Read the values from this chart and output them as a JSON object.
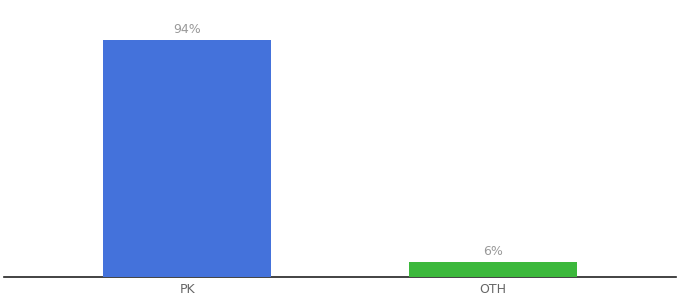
{
  "categories": [
    "PK",
    "OTH"
  ],
  "values": [
    94,
    6
  ],
  "bar_colors": [
    "#4472DB",
    "#3CB83C"
  ],
  "labels": [
    "94%",
    "6%"
  ],
  "background_color": "#ffffff",
  "text_color": "#999999",
  "label_fontsize": 9,
  "tick_fontsize": 9,
  "ylim": [
    0,
    108
  ],
  "bar_width": 0.55,
  "xlim": [
    -0.6,
    1.6
  ]
}
